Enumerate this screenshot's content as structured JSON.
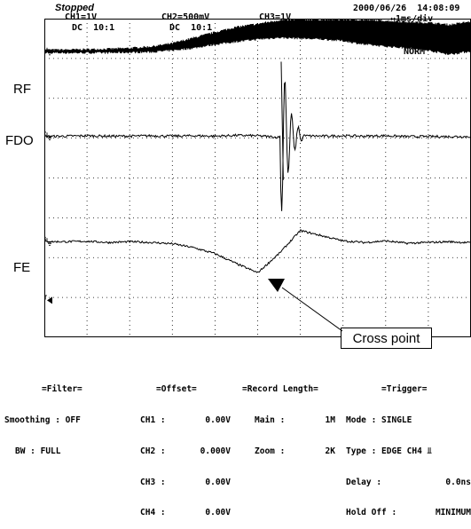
{
  "status": "Stopped",
  "timestamp": "2000/06/26  14:08:09",
  "timebase": "↔1ms/div",
  "channels": {
    "ch1": {
      "scale": "CH1=1V",
      "coupling": "DC  10:1"
    },
    "ch2": {
      "scale": "CH2=500mV",
      "coupling": "DC  10:1"
    },
    "ch3": {
      "scale": "CH3=1V"
    }
  },
  "trace_labels": {
    "rf": "RF",
    "fdo": "FDO",
    "fe": "FE"
  },
  "ground_markers": {
    "ch1": "1",
    "ch2": "2",
    "ch3": "3",
    "trigger": "T"
  },
  "overlay_text": "NORM",
  "callout": "Cross point",
  "settings": {
    "filter": {
      "title": "=Filter=",
      "smoothing": "Smoothing : OFF",
      "bw": "BW : FULL"
    },
    "offset": {
      "title": "=Offset=",
      "rows": [
        {
          "ch": "CH1 :",
          "val": "0.00V"
        },
        {
          "ch": "CH2 :",
          "val": "0.000V"
        },
        {
          "ch": "CH3 :",
          "val": "0.00V"
        },
        {
          "ch": "CH4 :",
          "val": "0.00V"
        }
      ]
    },
    "record": {
      "title": "=Record Length=",
      "main_label": "Main :",
      "main_val": "1M",
      "zoom_label": "Zoom :",
      "zoom_val": "2K"
    },
    "trigger": {
      "title": "=Trigger=",
      "mode": "Mode : SINGLE",
      "type": "Type : EDGE CH4",
      "delay_label": "Delay :",
      "delay_val": "0.0ns",
      "holdoff_label": "Hold Off :",
      "holdoff_val": "MINIMUM"
    }
  },
  "chart_data": {
    "type": "line",
    "x_divisions": 10,
    "y_divisions": 8,
    "x_unit": "1ms/div",
    "x": [
      0,
      0.5,
      1,
      1.5,
      2,
      2.5,
      3,
      3.5,
      4,
      4.5,
      5,
      5.5,
      6,
      6.5,
      7,
      7.5,
      8,
      8.5,
      9,
      9.5,
      10
    ],
    "series": [
      {
        "name": "RF",
        "scale": "1V/div",
        "color": "#000000",
        "envelope_upper": [
          7.22,
          7.22,
          7.23,
          7.24,
          7.26,
          7.3,
          7.38,
          7.52,
          7.66,
          7.79,
          7.87,
          7.96,
          7.98,
          7.98,
          7.98,
          7.97,
          7.95,
          7.92,
          7.9,
          7.85,
          7.93
        ],
        "envelope_lower": [
          7.14,
          7.14,
          7.14,
          7.14,
          7.15,
          7.16,
          7.2,
          7.26,
          7.35,
          7.42,
          7.48,
          7.52,
          7.5,
          7.48,
          7.44,
          7.35,
          7.3,
          7.26,
          7.2,
          7.1,
          7.18
        ]
      },
      {
        "name": "FDO",
        "scale": "500mV/div",
        "color": "#000000",
        "values": [
          5.04,
          5.05,
          5.06,
          5.05,
          5.05,
          5.06,
          5.05,
          5.06,
          5.05,
          5.07,
          5.06,
          5.02,
          5.06,
          5.05,
          5.06,
          5.05,
          5.06,
          5.04,
          5.04,
          5.04,
          5.04
        ],
        "spike": {
          "x": 5.6,
          "max": 6.92,
          "min": 3.95
        }
      },
      {
        "name": "FE",
        "scale": "1V/div",
        "color": "#000000",
        "values": [
          2.4,
          2.4,
          2.41,
          2.38,
          2.4,
          2.38,
          2.35,
          2.25,
          2.1,
          1.85,
          1.62,
          2.1,
          2.68,
          2.55,
          2.42,
          2.38,
          2.42,
          2.36,
          2.38,
          2.4,
          2.37
        ]
      }
    ]
  }
}
